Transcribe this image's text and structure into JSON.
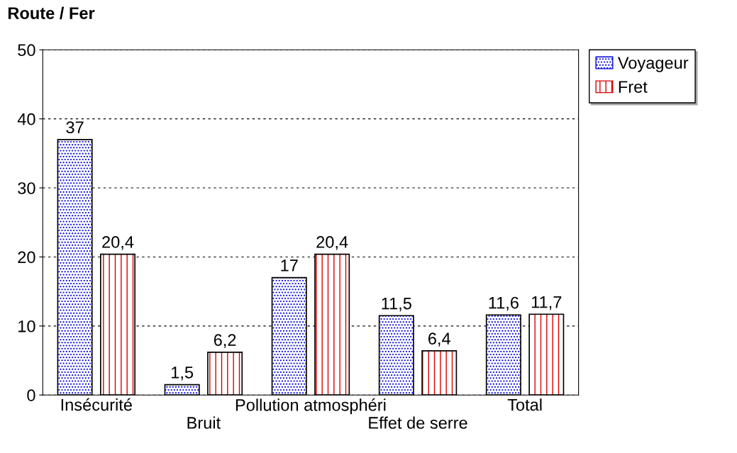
{
  "chart_data": {
    "type": "bar",
    "title": "Route / Fer",
    "categories": [
      "Insécurité",
      "Bruit",
      "Pollution atmosphéri",
      "Effet de serre",
      "Total"
    ],
    "series": [
      {
        "name": "Voyageur",
        "color": "#0000dd",
        "values": [
          37,
          1.5,
          17,
          11.5,
          11.6
        ],
        "value_labels": [
          "37",
          "1,5",
          "17",
          "11,5",
          "11,6"
        ]
      },
      {
        "name": "Fret",
        "color": "#dd0000",
        "values": [
          20.4,
          6.2,
          20.4,
          6.4,
          11.7
        ],
        "value_labels": [
          "20,4",
          "6,2",
          "20,4",
          "6,4",
          "11,7"
        ]
      }
    ],
    "ylim": [
      0,
      50
    ],
    "yticks": [
      0,
      10,
      20,
      30,
      40,
      50
    ],
    "grid": "y",
    "legend": "top right"
  }
}
